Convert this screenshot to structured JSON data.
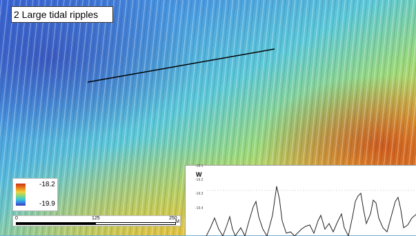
{
  "map": {
    "title": "2 Large tidal ripples",
    "legend": {
      "max": "-18.2",
      "min": "-19.9"
    },
    "scale": {
      "ticks": [
        "0",
        "125",
        "250"
      ],
      "unit": "M"
    }
  },
  "profile": {
    "label": "W",
    "y_ticks": [
      "-19.1",
      "-19.2",
      "-19.3",
      "-19.4"
    ]
  },
  "colors": {
    "deep": "#3436b0",
    "mid": "#38c8d8",
    "shallow": "#f0d23c",
    "peak": "#c83214"
  }
}
